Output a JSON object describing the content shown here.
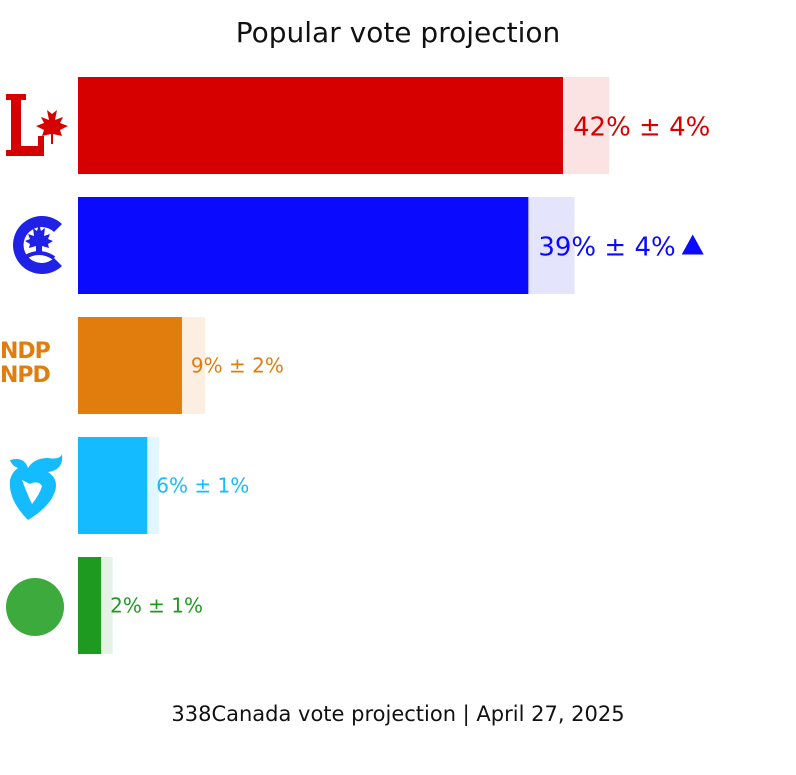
{
  "chart_data": {
    "type": "bar",
    "orientation": "horizontal",
    "title": "Popular vote projection",
    "footer": "338Canada vote projection | April 27, 2025",
    "xlim": [
      0,
      50
    ],
    "grid": false,
    "series": [
      {
        "party_logo": "liberal-logo",
        "value": 42,
        "margin": 4,
        "label": "42% ± 4%",
        "color": "#d60000",
        "light": "#fbe3e3",
        "trend": ""
      },
      {
        "party_logo": "conservative-logo",
        "value": 39,
        "margin": 4,
        "label": "39% ± 4%",
        "color": "#0a0aff",
        "light": "#e4e4fd",
        "trend": "up"
      },
      {
        "party_logo": "ndp-logo",
        "value": 9,
        "margin": 2,
        "label": "9% ± 2%",
        "color": "#e07d0d",
        "light": "#fcefe2",
        "trend": ""
      },
      {
        "party_logo": "bloc-logo",
        "value": 6,
        "margin": 1,
        "label": "6% ± 1%",
        "color": "#14bbff",
        "light": "#e2f6ff",
        "trend": ""
      },
      {
        "party_logo": "green-logo",
        "value": 2,
        "margin": 1,
        "label": "2% ± 1%",
        "color": "#1f9a20",
        "light": "#e6f2e6",
        "trend": ""
      }
    ]
  },
  "logos": {
    "ndp_line1": "NDP",
    "ndp_line2": "NPD"
  }
}
